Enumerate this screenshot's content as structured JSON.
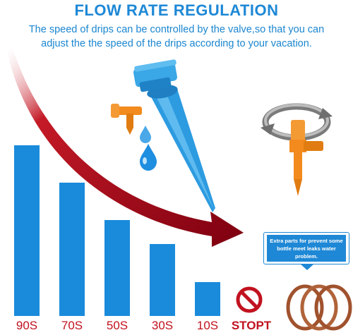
{
  "header": {
    "title": "FLOW RATE REGULATION",
    "subtitle_line1": "The speed of drips can be controlled by the valve,so that you can",
    "subtitle_line2": "adjust the the speed of the drips according to your vacation."
  },
  "bars": [
    {
      "label": "90S",
      "relative_speed": 1.0
    },
    {
      "label": "70S",
      "relative_speed": 0.78
    },
    {
      "label": "50S",
      "relative_speed": 0.56
    },
    {
      "label": "30S",
      "relative_speed": 0.42
    },
    {
      "label": "10S",
      "relative_speed": 0.2
    }
  ],
  "stop": {
    "label": "STOPT"
  },
  "info_box": {
    "line1": "Extra parts for prevent some",
    "line2": "bottle meet leaks water",
    "line3": "problem."
  },
  "colors": {
    "title_blue": "#1e88d6",
    "bar_blue": "#1a8bdb",
    "label_red": "#c1121f",
    "arrow_red": "#b3001b",
    "spike_blue": "#3aa7e6",
    "valve_orange": "#f28a1e",
    "ring_brown": "#a0522d"
  },
  "icons": [
    "dripper-spike-icon",
    "water-drop-icon",
    "rotation-arrow-icon",
    "valve-icon",
    "no-entry-icon",
    "o-ring-icon"
  ]
}
